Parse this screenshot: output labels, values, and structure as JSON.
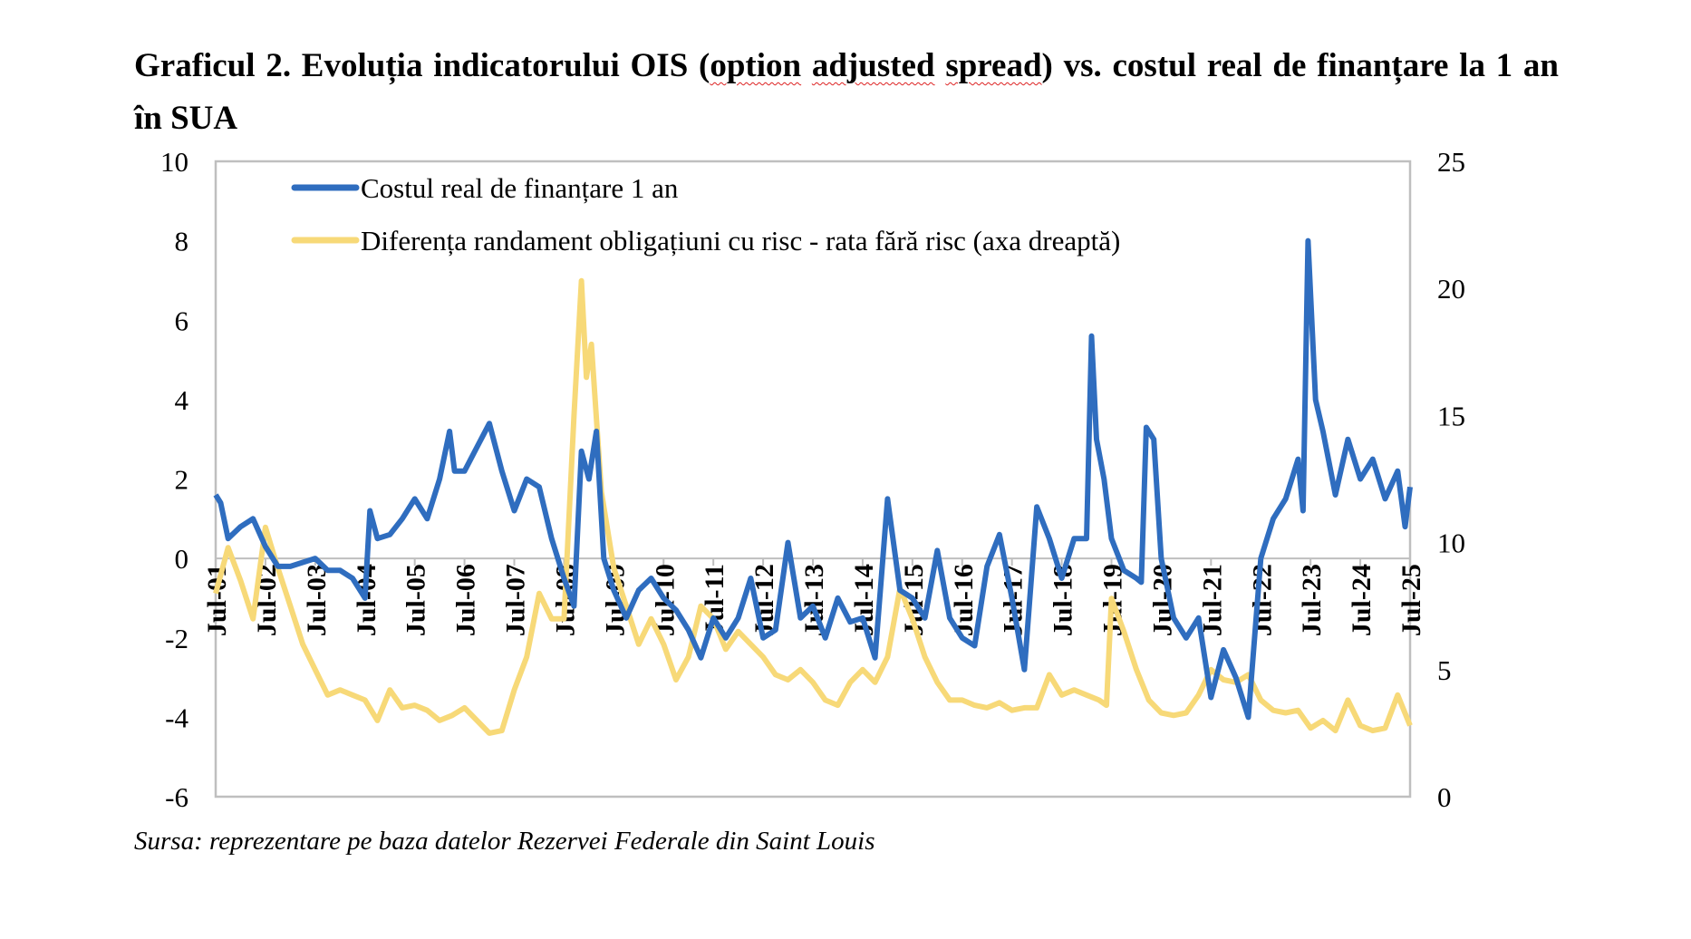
{
  "title": {
    "prefix": "Graficul 2. Evoluția indicatorului OIS (",
    "w1": "option",
    "w2": "adjusted",
    "w3": "spread",
    "suffix": ") vs. costul real de finanțare la 1 an în SUA"
  },
  "source": "Sursa: reprezentare pe baza datelor Rezervei Federale din Saint Louis",
  "colors": {
    "blue": "#2f6dbf",
    "yellow": "#f7d978",
    "axis": "#bfbfbf"
  },
  "chart_data": {
    "type": "line",
    "title": "Graficul 2. Evoluția indicatorului OIS (option adjusted spread) vs. costul real de finanțare la 1 an în SUA",
    "left_axis": {
      "ylim": [
        -6,
        10
      ],
      "ticks": [
        "10",
        "8",
        "6",
        "4",
        "2",
        "0",
        "-2",
        "-4",
        "-6"
      ],
      "tick_values": [
        10,
        8,
        6,
        4,
        2,
        0,
        -2,
        -4,
        -6
      ]
    },
    "right_axis": {
      "ylim": [
        0,
        25
      ],
      "ticks": [
        "25",
        "20",
        "15",
        "10",
        "5",
        "0"
      ],
      "tick_values": [
        25,
        20,
        15,
        10,
        5,
        0
      ]
    },
    "x_tick_labels": [
      "Jul-01",
      "Jul-02",
      "Jul-03",
      "Jul-04",
      "Jul-05",
      "Jul-06",
      "Jul-07",
      "Jul-08",
      "Jul-09",
      "Jul-10",
      "Jul-11",
      "Jul-12",
      "Jul-13",
      "Jul-14",
      "Jul-15",
      "Jul-16",
      "Jul-17",
      "Jul-18",
      "Jul-19",
      "Jul-20",
      "Jul-21",
      "Jul-22",
      "Jul-23",
      "Jul-24",
      "Jul-25"
    ],
    "xlim": [
      2001.5,
      2025.5
    ],
    "legend_placement": "top-left",
    "series": [
      {
        "name": "Costul real de finanțare 1 an",
        "axis": "left",
        "color": "#2f6dbf",
        "x": [
          2001.5,
          2001.6,
          2001.75,
          2002,
          2002.25,
          2002.5,
          2002.75,
          2003,
          2003.25,
          2003.5,
          2003.75,
          2004,
          2004.25,
          2004.5,
          2004.6,
          2004.75,
          2005,
          2005.25,
          2005.5,
          2005.75,
          2006,
          2006.2,
          2006.3,
          2006.5,
          2006.75,
          2007,
          2007.25,
          2007.5,
          2007.75,
          2008,
          2008.25,
          2008.5,
          2008.7,
          2008.85,
          2009,
          2009.15,
          2009.3,
          2009.5,
          2009.75,
          2010,
          2010.25,
          2010.5,
          2010.75,
          2011,
          2011.25,
          2011.5,
          2011.75,
          2012,
          2012.25,
          2012.5,
          2012.75,
          2013,
          2013.25,
          2013.5,
          2013.75,
          2014,
          2014.25,
          2014.5,
          2014.75,
          2015,
          2015.25,
          2015.5,
          2015.75,
          2016,
          2016.25,
          2016.5,
          2016.75,
          2017,
          2017.25,
          2017.5,
          2017.75,
          2018,
          2018.25,
          2018.5,
          2018.75,
          2019,
          2019.1,
          2019.2,
          2019.35,
          2019.5,
          2019.75,
          2020,
          2020.1,
          2020.2,
          2020.35,
          2020.5,
          2020.75,
          2021,
          2021.25,
          2021.5,
          2021.75,
          2022,
          2022.25,
          2022.5,
          2022.75,
          2023,
          2023.25,
          2023.35,
          2023.45,
          2023.6,
          2023.75,
          2024,
          2024.25,
          2024.5,
          2024.75,
          2025,
          2025.25,
          2025.4,
          2025.5
        ],
        "values": [
          1.6,
          1.4,
          0.5,
          0.8,
          1.0,
          0.3,
          -0.2,
          -0.2,
          -0.1,
          0.0,
          -0.3,
          -0.3,
          -0.5,
          -1.0,
          1.2,
          0.5,
          0.6,
          1.0,
          1.5,
          1.0,
          2.0,
          3.2,
          2.2,
          2.2,
          2.8,
          3.4,
          2.2,
          1.2,
          2.0,
          1.8,
          0.5,
          -0.5,
          -1.2,
          2.7,
          2.0,
          3.2,
          0.0,
          -0.8,
          -1.5,
          -0.8,
          -0.5,
          -1.0,
          -1.3,
          -1.8,
          -2.5,
          -1.5,
          -2.0,
          -1.5,
          -0.5,
          -2.0,
          -1.8,
          0.4,
          -1.5,
          -1.2,
          -2.0,
          -1.0,
          -1.6,
          -1.5,
          -2.5,
          1.5,
          -0.8,
          -1.0,
          -1.5,
          0.2,
          -1.5,
          -2.0,
          -2.2,
          -0.2,
          0.6,
          -1.0,
          -2.8,
          1.3,
          0.5,
          -0.5,
          0.5,
          0.5,
          5.6,
          3.0,
          2.0,
          0.5,
          -0.3,
          -0.5,
          -0.6,
          3.3,
          3.0,
          0.0,
          -1.5,
          -2.0,
          -1.5,
          -3.5,
          -2.3,
          -3.0,
          -4.0,
          0.0,
          1.0,
          1.5,
          2.5,
          1.2,
          8.0,
          4.0,
          3.2,
          1.6,
          3.0,
          2.0,
          2.5,
          1.5,
          2.2,
          0.8,
          1.8
        ]
      },
      {
        "name": "Diferența randament obligațiuni cu risc - rata fără risc (axa dreaptă)",
        "axis": "right",
        "color": "#f7d978",
        "x": [
          2001.5,
          2001.75,
          2002,
          2002.25,
          2002.5,
          2002.75,
          2003,
          2003.25,
          2003.5,
          2003.75,
          2004,
          2004.25,
          2004.5,
          2004.75,
          2005,
          2005.25,
          2005.5,
          2005.75,
          2006,
          2006.25,
          2006.5,
          2006.75,
          2007,
          2007.25,
          2007.5,
          2007.75,
          2008,
          2008.25,
          2008.5,
          2008.7,
          2008.85,
          2008.95,
          2009.05,
          2009.25,
          2009.5,
          2009.75,
          2010,
          2010.25,
          2010.5,
          2010.75,
          2011,
          2011.25,
          2011.5,
          2011.75,
          2012,
          2012.25,
          2012.5,
          2012.75,
          2013,
          2013.25,
          2013.5,
          2013.75,
          2014,
          2014.25,
          2014.5,
          2014.75,
          2015,
          2015.25,
          2015.5,
          2015.75,
          2016,
          2016.25,
          2016.5,
          2016.75,
          2017,
          2017.25,
          2017.5,
          2017.75,
          2018,
          2018.25,
          2018.5,
          2018.75,
          2019,
          2019.25,
          2019.4,
          2019.5,
          2019.75,
          2020,
          2020.25,
          2020.5,
          2020.75,
          2021,
          2021.25,
          2021.5,
          2021.75,
          2022,
          2022.25,
          2022.5,
          2022.75,
          2023,
          2023.25,
          2023.5,
          2023.75,
          2024,
          2024.25,
          2024.5,
          2024.75,
          2025,
          2025.25,
          2025.5
        ],
        "values": [
          8.0,
          9.8,
          8.5,
          7.0,
          10.6,
          9.0,
          7.5,
          6.0,
          5.0,
          4.0,
          4.2,
          4.0,
          3.8,
          3.0,
          4.2,
          3.5,
          3.6,
          3.4,
          3.0,
          3.2,
          3.5,
          3.0,
          2.5,
          2.6,
          4.2,
          5.5,
          8.0,
          7.0,
          7.0,
          15.0,
          20.3,
          16.5,
          17.8,
          12.0,
          9.0,
          7.5,
          6.0,
          7.0,
          6.0,
          4.6,
          5.5,
          7.5,
          7.0,
          5.8,
          6.5,
          6.0,
          5.5,
          4.8,
          4.6,
          5.0,
          4.5,
          3.8,
          3.6,
          4.5,
          5.0,
          4.5,
          5.5,
          8.2,
          7.0,
          5.5,
          4.5,
          3.8,
          3.8,
          3.6,
          3.5,
          3.7,
          3.4,
          3.5,
          3.5,
          4.8,
          4.0,
          4.2,
          4.0,
          3.8,
          3.6,
          7.8,
          6.5,
          5.0,
          3.8,
          3.3,
          3.2,
          3.3,
          4.0,
          5.0,
          4.6,
          4.5,
          4.8,
          3.8,
          3.4,
          3.3,
          3.4,
          2.7,
          3.0,
          2.6,
          3.8,
          2.8,
          2.6,
          2.7,
          4.0,
          2.8
        ]
      }
    ]
  }
}
